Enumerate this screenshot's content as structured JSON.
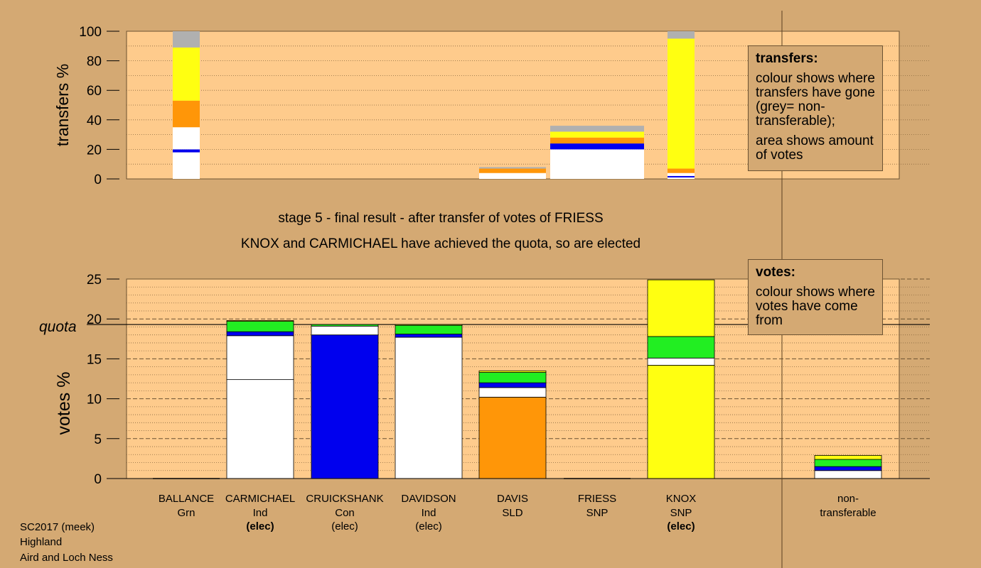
{
  "info_lines": [
    "SC2017 (meek)",
    "Highland",
    "Aird and Loch Ness"
  ],
  "captions": {
    "stage": "stage 5 - final result - after transfer of votes of FRIESS",
    "result": "KNOX and CARMICHAEL have achieved the quota, so are elected"
  },
  "legend_transfers": {
    "title": "transfers:",
    "line1": "colour shows where transfers have gone (grey= non-transferable);",
    "line2": "area shows amount of votes"
  },
  "legend_votes": {
    "title": "votes:",
    "line1": "colour shows where votes have come from"
  },
  "colors": {
    "Grn": "#22ee22",
    "Con": "#0000ee",
    "Ind": "#ffffff",
    "SLD": "#ff9608",
    "SNP": "#ffff11",
    "NT": "#b0b0b0",
    "plot_bg": "#fecb8c",
    "page_bg": "#d4a973"
  },
  "candidates": [
    {
      "name": "BALLANCE",
      "party": "Grn",
      "status": ""
    },
    {
      "name": "CARMICHAEL",
      "party": "Ind",
      "status": "(elec)"
    },
    {
      "name": "CRUICKSHANK",
      "party": "Con",
      "status": "(elec)"
    },
    {
      "name": "DAVIDSON",
      "party": "Ind",
      "status": "(elec)"
    },
    {
      "name": "DAVIS",
      "party": "SLD",
      "status": ""
    },
    {
      "name": "FRIESS",
      "party": "SNP",
      "status": ""
    },
    {
      "name": "KNOX",
      "party": "SNP",
      "status": "(elec)"
    },
    {
      "name": "non-transferable",
      "party": "",
      "status": ""
    }
  ],
  "chart_data": [
    {
      "type": "bar",
      "title": "",
      "ylabel": "transfers %",
      "ylim": [
        0,
        100
      ],
      "yticks": [
        0,
        20,
        40,
        60,
        80,
        100
      ],
      "grid": "dotted",
      "categories": [
        "BALLANCE",
        "CARMICHAEL",
        "CRUICKSHANK",
        "DAVIDSON",
        "DAVIS",
        "FRIESS",
        "KNOX"
      ],
      "bars": [
        {
          "category": "BALLANCE",
          "segments": [
            {
              "party": "Ind",
              "from": 0,
              "to": 18
            },
            {
              "party": "Con",
              "from": 18,
              "to": 20
            },
            {
              "party": "Ind",
              "from": 20,
              "to": 35
            },
            {
              "party": "SLD",
              "from": 35,
              "to": 53
            },
            {
              "party": "SNP",
              "from": 53,
              "to": 89
            },
            {
              "party": "NT",
              "from": 89,
              "to": 100
            }
          ]
        },
        {
          "category": "DAVIS",
          "segments": [
            {
              "party": "Ind",
              "from": 0,
              "to": 4
            },
            {
              "party": "SLD",
              "from": 4,
              "to": 7
            },
            {
              "party": "NT",
              "from": 7,
              "to": 8
            }
          ]
        },
        {
          "category": "FRIESS",
          "segments": [
            {
              "party": "Ind",
              "from": 0,
              "to": 20
            },
            {
              "party": "Con",
              "from": 20,
              "to": 24
            },
            {
              "party": "SLD",
              "from": 24,
              "to": 28
            },
            {
              "party": "SNP",
              "from": 28,
              "to": 32
            },
            {
              "party": "NT",
              "from": 32,
              "to": 36
            }
          ]
        },
        {
          "category": "KNOX",
          "segments": [
            {
              "party": "Ind",
              "from": 0,
              "to": 1
            },
            {
              "party": "Con",
              "from": 1,
              "to": 2
            },
            {
              "party": "Ind",
              "from": 2,
              "to": 4
            },
            {
              "party": "SLD",
              "from": 4,
              "to": 7
            },
            {
              "party": "SNP",
              "from": 7,
              "to": 95
            },
            {
              "party": "NT",
              "from": 95,
              "to": 100
            }
          ]
        }
      ]
    },
    {
      "type": "bar",
      "title": "",
      "ylabel": "votes %",
      "ylim": [
        0,
        25
      ],
      "yticks": [
        0,
        5,
        10,
        15,
        20,
        25
      ],
      "quota": 19.3,
      "quota_label": "quota",
      "categories": [
        "BALLANCE",
        "CARMICHAEL",
        "CRUICKSHANK",
        "DAVIDSON",
        "DAVIS",
        "FRIESS",
        "KNOX",
        "non-transferable"
      ],
      "bars": [
        {
          "category": "CARMICHAEL",
          "segments": [
            {
              "party": "Ind",
              "from": 0,
              "to": 12.4
            },
            {
              "party": "Ind",
              "from": 12.4,
              "to": 17.9
            },
            {
              "party": "Con",
              "from": 17.9,
              "to": 18.4
            },
            {
              "party": "Grn",
              "from": 18.4,
              "to": 19.7
            },
            {
              "party": "SNP",
              "from": 19.7,
              "to": 19.8
            }
          ]
        },
        {
          "category": "CRUICKSHANK",
          "segments": [
            {
              "party": "Con",
              "from": 0,
              "to": 18.0
            },
            {
              "party": "Ind",
              "from": 18.0,
              "to": 19.1
            },
            {
              "party": "Grn",
              "from": 19.1,
              "to": 19.3
            }
          ]
        },
        {
          "category": "DAVIDSON",
          "segments": [
            {
              "party": "Ind",
              "from": 0,
              "to": 17.7
            },
            {
              "party": "Con",
              "from": 17.7,
              "to": 18.1
            },
            {
              "party": "Grn",
              "from": 18.1,
              "to": 19.2
            },
            {
              "party": "SNP",
              "from": 19.2,
              "to": 19.3
            }
          ]
        },
        {
          "category": "DAVIS",
          "segments": [
            {
              "party": "SLD",
              "from": 0,
              "to": 10.2
            },
            {
              "party": "Ind",
              "from": 10.2,
              "to": 11.4
            },
            {
              "party": "Con",
              "from": 11.4,
              "to": 12.0
            },
            {
              "party": "Grn",
              "from": 12.0,
              "to": 13.3
            },
            {
              "party": "SNP",
              "from": 13.3,
              "to": 13.5
            }
          ]
        },
        {
          "category": "KNOX",
          "segments": [
            {
              "party": "SNP",
              "from": 0,
              "to": 14.2
            },
            {
              "party": "Ind",
              "from": 14.2,
              "to": 15.1
            },
            {
              "party": "Grn",
              "from": 15.1,
              "to": 17.8
            },
            {
              "party": "SNP",
              "from": 17.8,
              "to": 24.9
            }
          ]
        },
        {
          "category": "non-transferable",
          "segments": [
            {
              "party": "Ind",
              "from": 0,
              "to": 1.0
            },
            {
              "party": "Con",
              "from": 1.0,
              "to": 1.5
            },
            {
              "party": "Grn",
              "from": 1.5,
              "to": 2.4
            },
            {
              "party": "SNP",
              "from": 2.4,
              "to": 2.9
            }
          ]
        }
      ]
    }
  ]
}
